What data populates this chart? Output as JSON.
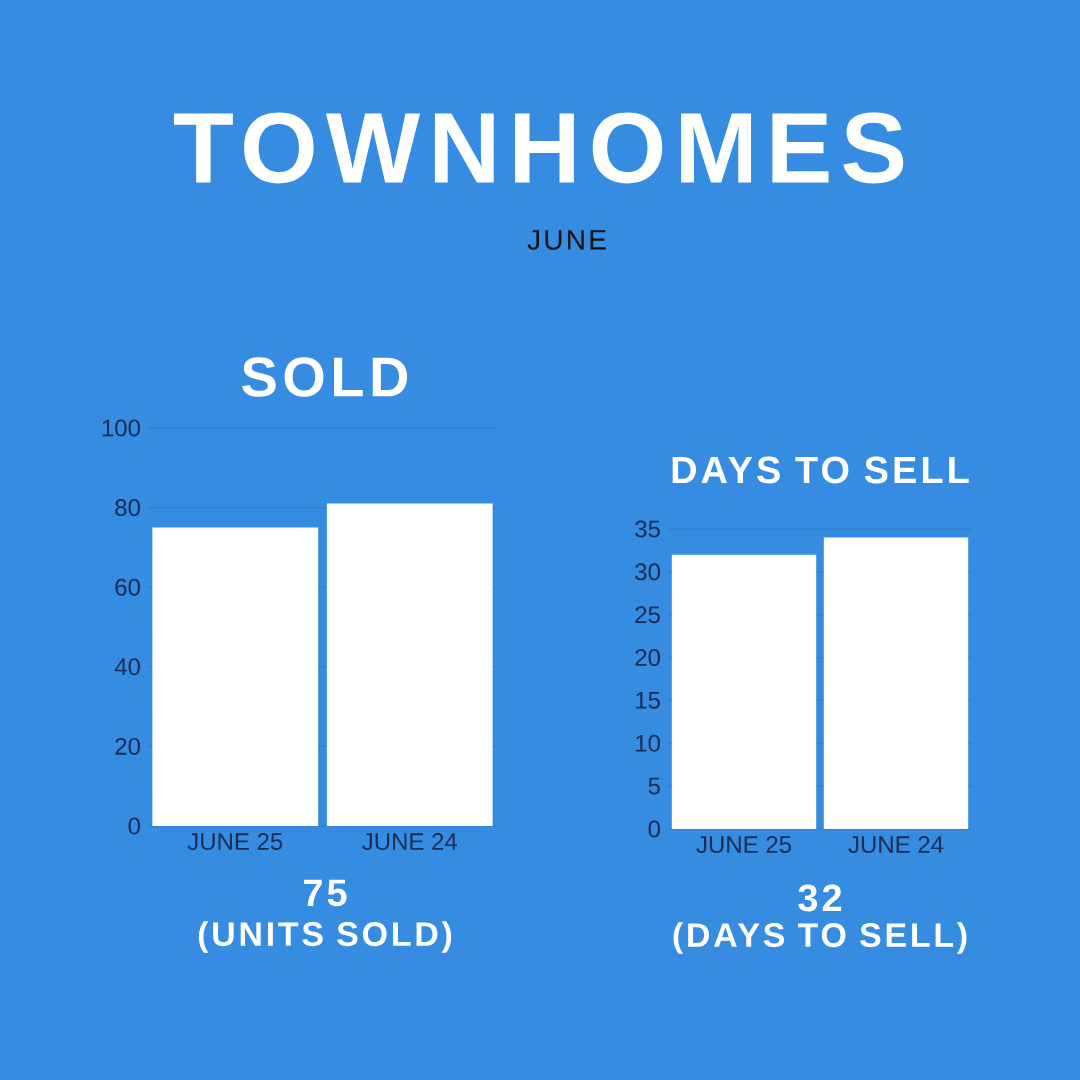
{
  "chart_data": [
    {
      "type": "bar",
      "title": "SOLD",
      "categories": [
        "JUNE 25",
        "JUNE 24"
      ],
      "series": [
        {
          "color": "#ffffff",
          "values": [
            75,
            81
          ]
        }
      ],
      "ylim": [
        0,
        100
      ],
      "yticks": [
        0,
        20,
        40,
        60,
        80,
        100
      ],
      "grid": "y",
      "annotations": [
        "TOWNHOMES",
        "JUNE",
        "75",
        "(UNITS SOLD)"
      ]
    },
    {
      "type": "bar",
      "title": "DAYS TO SELL",
      "categories": [
        "JUNE 25",
        "JUNE 24"
      ],
      "series": [
        {
          "color": "#ffffff",
          "values": [
            32,
            34
          ]
        }
      ],
      "ylim": [
        0,
        35
      ],
      "yticks": [
        0,
        5,
        10,
        15,
        20,
        25,
        30,
        35
      ],
      "grid": "y",
      "annotations": [
        "32",
        "(DAYS TO SELL)"
      ]
    }
  ]
}
